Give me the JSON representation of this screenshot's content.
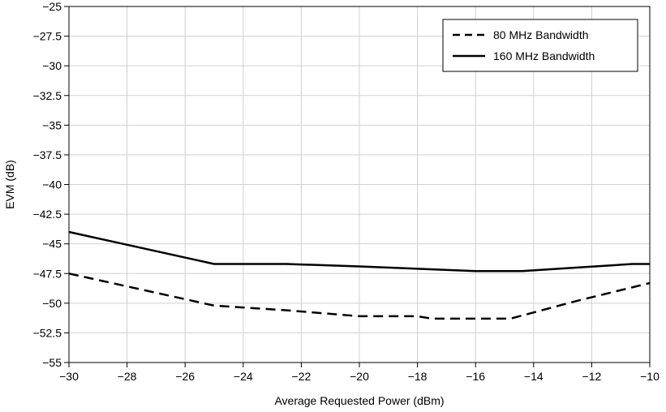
{
  "chart_data": {
    "type": "line",
    "xlabel": "Average Requested Power (dBm)",
    "ylabel": "EVM (dB)",
    "xlim": [
      -30,
      -10
    ],
    "ylim": [
      -55,
      -25
    ],
    "x_ticks": [
      -30,
      -28,
      -26,
      -24,
      -22,
      -20,
      -18,
      -16,
      -14,
      -12,
      -10
    ],
    "x_tick_labels": [
      "−30",
      "−28",
      "−26",
      "−24",
      "−22",
      "−20",
      "−18",
      "−16",
      "−14",
      "−12",
      "−10"
    ],
    "y_ticks": [
      -25,
      -27.5,
      -30,
      -32.5,
      -35,
      -37.5,
      -40,
      -42.5,
      -45,
      -47.5,
      -50,
      -52.5,
      -55
    ],
    "y_tick_labels": [
      "−25",
      "−27.5",
      "−30",
      "−32.5",
      "−35",
      "−37.5",
      "−40",
      "−42.5",
      "−45",
      "−47.5",
      "−50",
      "−52.5",
      "−55"
    ],
    "grid": true,
    "legend_position": "top-right",
    "series": [
      {
        "name": "80 MHz Bandwidth",
        "style": "dashed",
        "color": "#000000",
        "x": [
          -30,
          -25,
          -22.5,
          -20,
          -18,
          -17.5,
          -16,
          -14.8,
          -12.5,
          -10
        ],
        "y": [
          -47.5,
          -50.2,
          -50.6,
          -51.1,
          -51.1,
          -51.3,
          -51.3,
          -51.3,
          -49.8,
          -48.3
        ]
      },
      {
        "name": "160 MHz Bandwidth",
        "style": "solid",
        "color": "#000000",
        "x": [
          -30,
          -25,
          -22.5,
          -20,
          -18,
          -16,
          -14.4,
          -12.5,
          -10.6,
          -10
        ],
        "y": [
          -44,
          -46.7,
          -46.7,
          -46.9,
          -47.1,
          -47.3,
          -47.3,
          -47,
          -46.7,
          -46.7
        ]
      }
    ]
  }
}
